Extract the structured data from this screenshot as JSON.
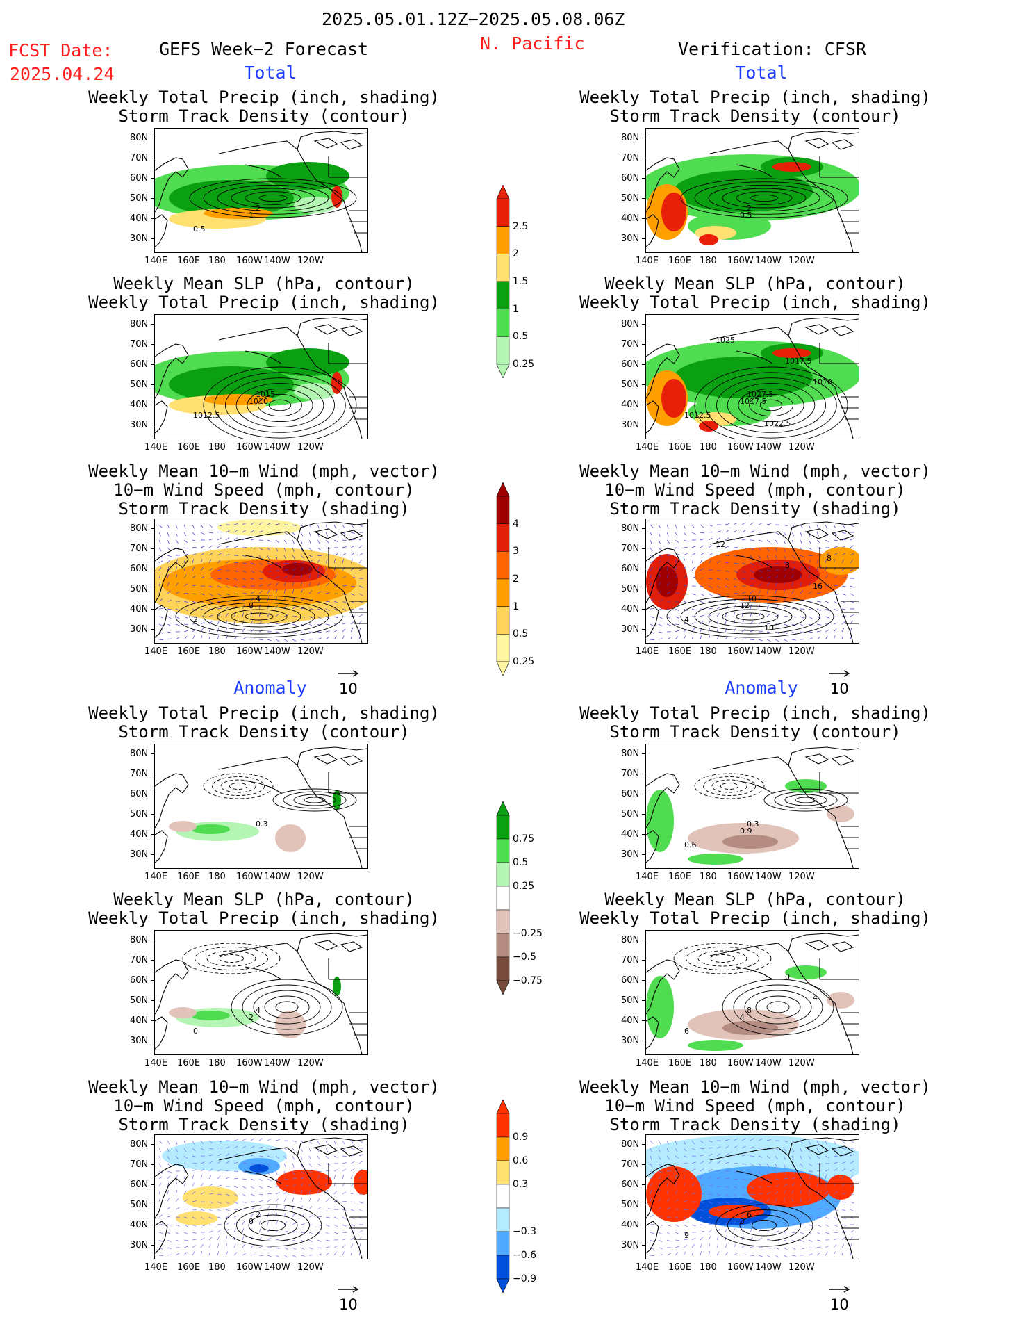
{
  "header": {
    "period": "2025.05.01.12Z−2025.05.08.06Z",
    "fcst_label": "FCST Date:",
    "fcst_date": "2025.04.24",
    "region": "N. Pacific",
    "left_title": "GEFS Week−2 Forecast",
    "right_title": "Verification: CFSR"
  },
  "sections": {
    "total": "Total",
    "anomaly": "Anomaly"
  },
  "axes": {
    "lat_labels": [
      "80N",
      "70N",
      "60N",
      "50N",
      "40N",
      "30N"
    ],
    "lon_labels": [
      "140E",
      "160E",
      "180",
      "160W",
      "140W",
      "120W"
    ]
  },
  "panel_titles": {
    "precip_storm": "Weekly Total Precip (inch, shading)\nStorm Track Density (contour)",
    "slp_precip": "Weekly Mean SLP (hPa, contour)\nWeekly Total Precip (inch, shading)",
    "wind_storm": "Weekly Mean 10−m Wind (mph, vector)\n10−m Wind Speed (mph, contour)\nStorm Track Density (shading)"
  },
  "reference_vector": "10",
  "colorbars": [
    {
      "id": "precip_total",
      "labels": [
        "2.5",
        "2",
        "1.5",
        "1",
        "0.5",
        "0.25"
      ],
      "colors": [
        "#e8200a",
        "#ffa000",
        "#ffe070",
        "#0aa012",
        "#50dc50",
        "#b4f5b4"
      ]
    },
    {
      "id": "storm_total",
      "labels": [
        "4",
        "3",
        "2",
        "1",
        "0.5",
        "0.25"
      ],
      "colors": [
        "#a00000",
        "#e01e0a",
        "#ff6400",
        "#ffa000",
        "#ffd25a",
        "#fff5a0"
      ]
    },
    {
      "id": "precip_anom",
      "labels": [
        "0.75",
        "0.5",
        "0.25",
        "−0.25",
        "−0.5",
        "−0.75"
      ],
      "colors": [
        "#0aa012",
        "#50dc50",
        "#b4f5b4",
        "#ffffff",
        "#e1c3b9",
        "#b48c82",
        "#784b3c"
      ]
    },
    {
      "id": "storm_anom",
      "labels": [
        "0.9",
        "0.6",
        "0.3",
        "−0.3",
        "−0.6",
        "−0.9"
      ],
      "colors": [
        "#ff3200",
        "#ffa000",
        "#ffe070",
        "#ffffff",
        "#b4ebff",
        "#50aaff",
        "#0050dc"
      ]
    }
  ],
  "panels": [
    {
      "id": "fc-total-precip",
      "contour_labels": [
        "2",
        "1",
        "0.5"
      ]
    },
    {
      "id": "fc-total-slp",
      "contour_labels": [
        "1015",
        "1010",
        "1012.5"
      ]
    },
    {
      "id": "fc-total-wind",
      "contour_labels": [
        "4",
        "8",
        "2"
      ]
    },
    {
      "id": "fc-anom-precip",
      "contour_labels": [
        "0.3"
      ]
    },
    {
      "id": "fc-anom-slp",
      "contour_labels": [
        "4",
        "2",
        "0"
      ]
    },
    {
      "id": "fc-anom-wind",
      "contour_labels": [
        "2",
        "0"
      ]
    },
    {
      "id": "vf-total-precip",
      "contour_labels": [
        "2",
        "0.5"
      ]
    },
    {
      "id": "vf-total-slp",
      "contour_labels": [
        "1027.5",
        "1017.5",
        "1012.5",
        "1017.5",
        "1010",
        "1022.5",
        "1025"
      ]
    },
    {
      "id": "vf-total-wind",
      "contour_labels": [
        "10",
        "12",
        "4",
        "8",
        "16",
        "10",
        "12",
        "8"
      ]
    },
    {
      "id": "vf-anom-precip",
      "contour_labels": [
        "0.3",
        "0.9",
        "0.6"
      ]
    },
    {
      "id": "vf-anom-slp",
      "contour_labels": [
        "8",
        "4",
        "6",
        "0",
        "4"
      ]
    },
    {
      "id": "vf-anom-wind",
      "contour_labels": [
        "6",
        "3",
        "9"
      ]
    }
  ]
}
